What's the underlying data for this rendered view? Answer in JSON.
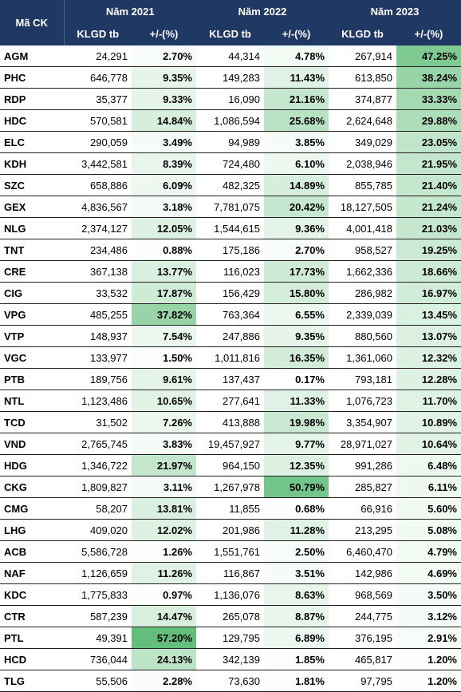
{
  "header": {
    "code_label": "Mã CK",
    "years": [
      "Năm 2021",
      "Năm 2022",
      "Năm 2023"
    ],
    "volume_label": "KLGD tb",
    "change_label": "+/-(%)"
  },
  "rows": [
    {
      "code": "AGM",
      "v2021": "24,291",
      "p2021": "2.70%",
      "v2022": "44,314",
      "p2022": "4.78%",
      "v2023": "267,914",
      "p2023": "47.25%"
    },
    {
      "code": "PHC",
      "v2021": "646,778",
      "p2021": "9.35%",
      "v2022": "149,283",
      "p2022": "11.43%",
      "v2023": "613,850",
      "p2023": "38.24%"
    },
    {
      "code": "RDP",
      "v2021": "35,377",
      "p2021": "9.33%",
      "v2022": "16,090",
      "p2022": "21.16%",
      "v2023": "374,877",
      "p2023": "33.33%"
    },
    {
      "code": "HDC",
      "v2021": "570,581",
      "p2021": "14.84%",
      "v2022": "1,086,594",
      "p2022": "25.68%",
      "v2023": "2,624,648",
      "p2023": "29.88%"
    },
    {
      "code": "ELC",
      "v2021": "290,059",
      "p2021": "3.49%",
      "v2022": "94,989",
      "p2022": "3.85%",
      "v2023": "349,029",
      "p2023": "23.05%"
    },
    {
      "code": "KDH",
      "v2021": "3,442,581",
      "p2021": "8.39%",
      "v2022": "724,480",
      "p2022": "6.10%",
      "v2023": "2,038,946",
      "p2023": "21.95%"
    },
    {
      "code": "SZC",
      "v2021": "658,886",
      "p2021": "6.09%",
      "v2022": "482,325",
      "p2022": "14.89%",
      "v2023": "855,785",
      "p2023": "21.40%"
    },
    {
      "code": "GEX",
      "v2021": "4,836,567",
      "p2021": "3.18%",
      "v2022": "7,781,075",
      "p2022": "20.42%",
      "v2023": "18,127,505",
      "p2023": "21.24%"
    },
    {
      "code": "NLG",
      "v2021": "2,374,127",
      "p2021": "12.05%",
      "v2022": "1,544,615",
      "p2022": "9.36%",
      "v2023": "4,001,418",
      "p2023": "21.03%"
    },
    {
      "code": "TNT",
      "v2021": "234,486",
      "p2021": "0.88%",
      "v2022": "175,186",
      "p2022": "2.70%",
      "v2023": "958,527",
      "p2023": "19.25%"
    },
    {
      "code": "CRE",
      "v2021": "367,138",
      "p2021": "13.77%",
      "v2022": "116,023",
      "p2022": "17.73%",
      "v2023": "1,662,336",
      "p2023": "18.66%"
    },
    {
      "code": "CIG",
      "v2021": "33,532",
      "p2021": "17.87%",
      "v2022": "156,429",
      "p2022": "15.80%",
      "v2023": "286,982",
      "p2023": "16.97%"
    },
    {
      "code": "VPG",
      "v2021": "485,255",
      "p2021": "37.82%",
      "v2022": "763,364",
      "p2022": "6.55%",
      "v2023": "2,339,039",
      "p2023": "13.45%"
    },
    {
      "code": "VTP",
      "v2021": "148,937",
      "p2021": "7.54%",
      "v2022": "247,886",
      "p2022": "9.35%",
      "v2023": "880,560",
      "p2023": "13.07%"
    },
    {
      "code": "VGC",
      "v2021": "133,977",
      "p2021": "1.50%",
      "v2022": "1,011,816",
      "p2022": "16.35%",
      "v2023": "1,361,060",
      "p2023": "12.32%"
    },
    {
      "code": "PTB",
      "v2021": "189,756",
      "p2021": "9.61%",
      "v2022": "137,437",
      "p2022": "0.17%",
      "v2023": "793,181",
      "p2023": "12.28%"
    },
    {
      "code": "NTL",
      "v2021": "1,123,486",
      "p2021": "10.65%",
      "v2022": "277,641",
      "p2022": "11.33%",
      "v2023": "1,076,723",
      "p2023": "11.70%"
    },
    {
      "code": "TCD",
      "v2021": "31,502",
      "p2021": "7.26%",
      "v2022": "413,888",
      "p2022": "19.98%",
      "v2023": "3,354,907",
      "p2023": "10.89%"
    },
    {
      "code": "VND",
      "v2021": "2,765,745",
      "p2021": "3.83%",
      "v2022": "19,457,927",
      "p2022": "9.77%",
      "v2023": "28,971,027",
      "p2023": "10.64%"
    },
    {
      "code": "HDG",
      "v2021": "1,346,722",
      "p2021": "21.97%",
      "v2022": "964,150",
      "p2022": "12.35%",
      "v2023": "991,286",
      "p2023": "6.48%"
    },
    {
      "code": "CKG",
      "v2021": "1,809,827",
      "p2021": "3.11%",
      "v2022": "1,267,978",
      "p2022": "50.79%",
      "v2023": "285,827",
      "p2023": "6.11%"
    },
    {
      "code": "CMG",
      "v2021": "58,207",
      "p2021": "13.81%",
      "v2022": "11,855",
      "p2022": "0.68%",
      "v2023": "66,916",
      "p2023": "5.60%"
    },
    {
      "code": "LHG",
      "v2021": "409,020",
      "p2021": "12.02%",
      "v2022": "201,986",
      "p2022": "11.28%",
      "v2023": "213,295",
      "p2023": "5.08%"
    },
    {
      "code": "ACB",
      "v2021": "5,586,728",
      "p2021": "1.26%",
      "v2022": "1,551,761",
      "p2022": "2.50%",
      "v2023": "6,460,470",
      "p2023": "4.79%"
    },
    {
      "code": "NAF",
      "v2021": "1,126,659",
      "p2021": "11.26%",
      "v2022": "116,867",
      "p2022": "3.51%",
      "v2023": "142,986",
      "p2023": "4.69%"
    },
    {
      "code": "KDC",
      "v2021": "1,775,833",
      "p2021": "0.97%",
      "v2022": "1,136,076",
      "p2022": "8.63%",
      "v2023": "968,569",
      "p2023": "3.50%"
    },
    {
      "code": "CTR",
      "v2021": "587,239",
      "p2021": "14.47%",
      "v2022": "265,078",
      "p2022": "8.87%",
      "v2023": "244,775",
      "p2023": "3.12%"
    },
    {
      "code": "PTL",
      "v2021": "49,391",
      "p2021": "57.20%",
      "v2022": "129,795",
      "p2022": "6.89%",
      "v2023": "376,195",
      "p2023": "2.91%"
    },
    {
      "code": "HCD",
      "v2021": "736,044",
      "p2021": "24.13%",
      "v2022": "342,139",
      "p2022": "1.85%",
      "v2023": "465,817",
      "p2023": "1.20%"
    },
    {
      "code": "TLG",
      "v2021": "55,506",
      "p2021": "2.28%",
      "v2022": "73,630",
      "p2022": "1.81%",
      "v2023": "97,795",
      "p2023": "1.20%"
    }
  ],
  "colors": {
    "header_bg": "#1f3864",
    "header_text": "#ffffff",
    "scale_low": "#ffffff",
    "scale_high": "#63be7b"
  },
  "color_scale": {
    "min": 0,
    "max": 57.2
  }
}
